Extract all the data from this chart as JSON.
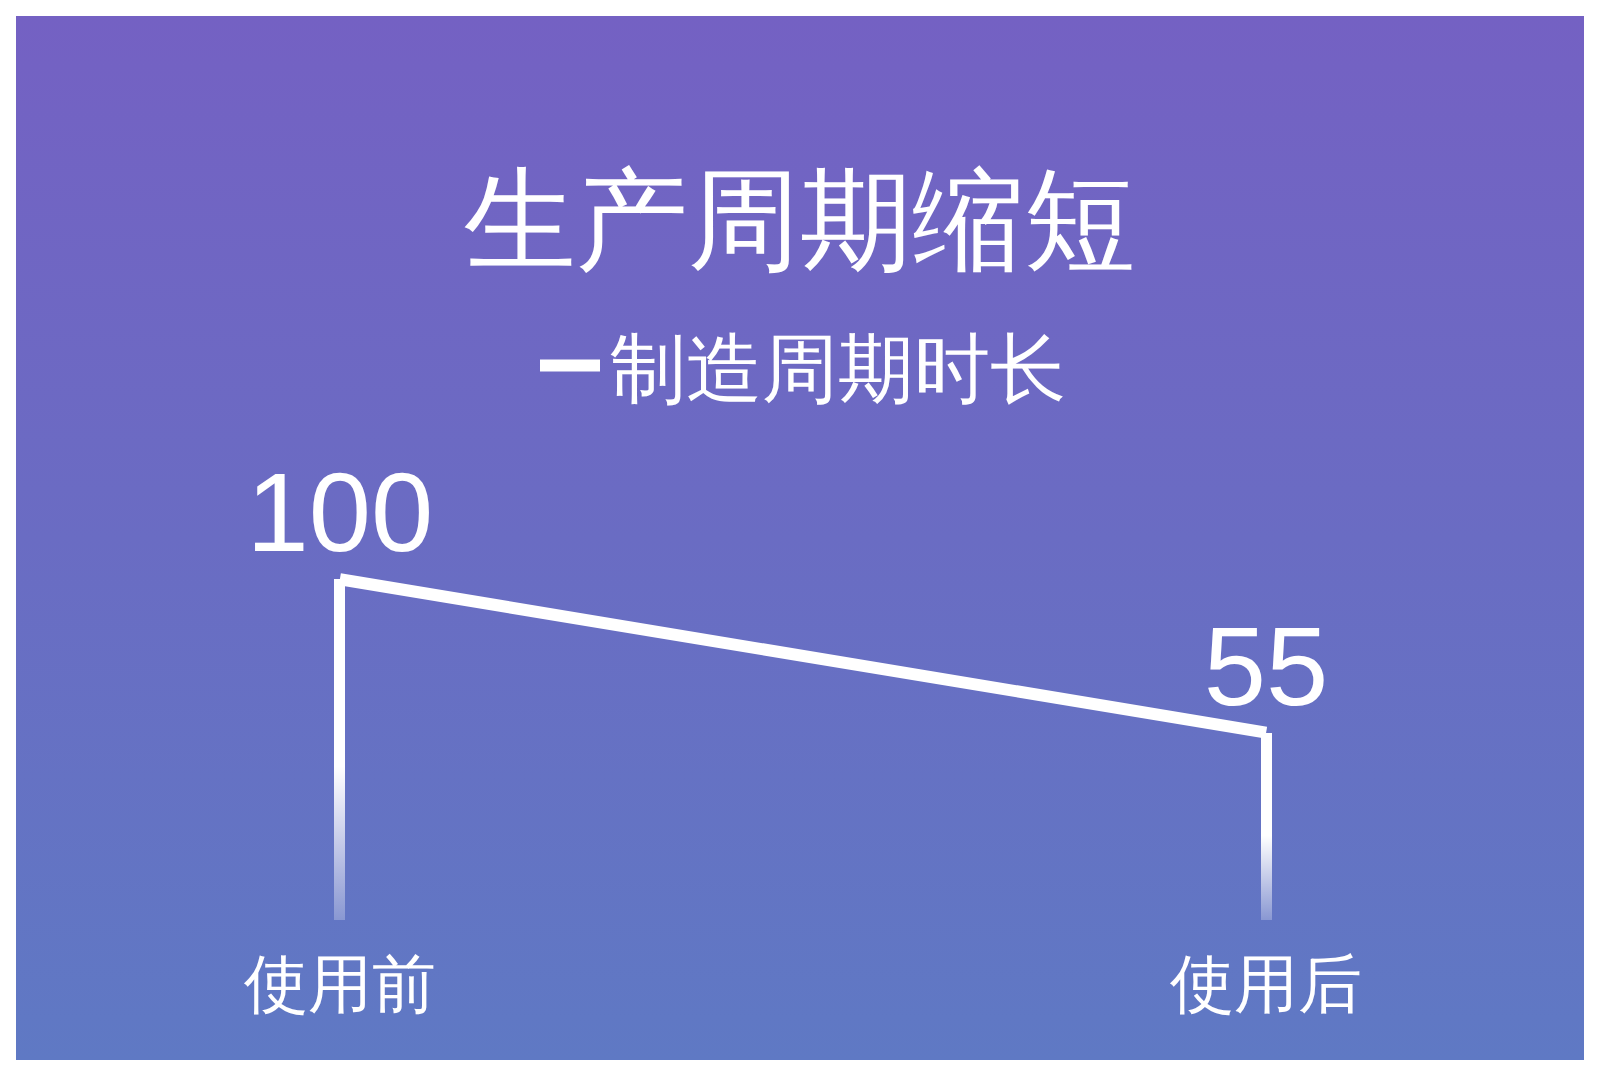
{
  "chart_data": {
    "type": "line",
    "title": "生产周期缩短",
    "categories": [
      "使用前",
      "使用后"
    ],
    "series": [
      {
        "type": "bar",
        "color": "#ffffff",
        "values": [
          100,
          55
        ]
      },
      {
        "name": "制造周期时长",
        "color": "#ffffff",
        "values": [
          100,
          55
        ],
        "value_labels": [
          "100",
          "55"
        ]
      }
    ],
    "legend": "top",
    "tick_labels": "x",
    "line_style": "solid"
  }
}
